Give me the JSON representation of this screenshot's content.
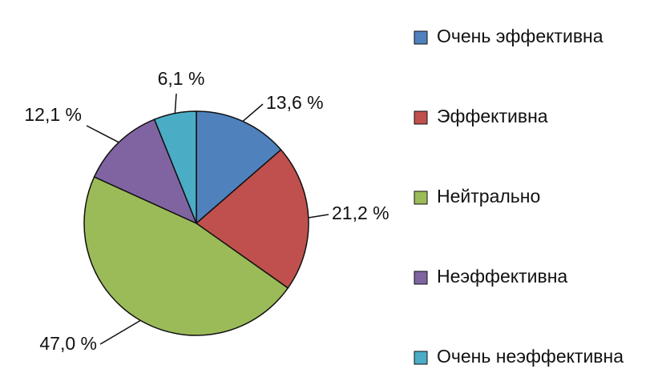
{
  "chart_data": {
    "type": "pie",
    "categories": [
      "Очень эффективна",
      "Эффективна",
      "Нейтрально",
      "Неэффективна",
      "Очень неэффективна"
    ],
    "values": [
      13.6,
      21.2,
      47.0,
      12.1,
      6.1
    ],
    "value_labels": [
      "13,6 %",
      "21,2 %",
      "47,0 %",
      "12,1 %",
      "6,1 %"
    ],
    "colors": [
      "#4f81bd",
      "#c0504d",
      "#9bbb59",
      "#8064a2",
      "#4bacc6"
    ],
    "legend": "right"
  }
}
